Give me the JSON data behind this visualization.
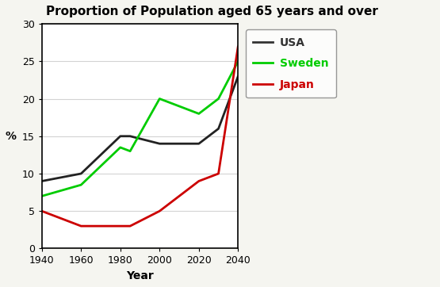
{
  "title": "Proportion of Population aged 65 years and over",
  "xlabel": "Year",
  "ylabel": "%",
  "ylim": [
    0,
    30
  ],
  "xlim": [
    1940,
    2040
  ],
  "xticks": [
    1940,
    1960,
    1980,
    2000,
    2020,
    2040
  ],
  "yticks": [
    0,
    5,
    10,
    15,
    20,
    25,
    30
  ],
  "USA": {
    "x": [
      1940,
      1960,
      1980,
      1985,
      2000,
      2020,
      2030,
      2040
    ],
    "y": [
      9,
      10,
      15,
      15,
      14,
      14,
      16,
      23
    ],
    "color": "#222222",
    "label": "USA",
    "linewidth": 2.0
  },
  "Sweden": {
    "x": [
      1940,
      1960,
      1980,
      1985,
      2000,
      2020,
      2030,
      2040
    ],
    "y": [
      7,
      8.5,
      13.5,
      13,
      20,
      18,
      20,
      25
    ],
    "color": "#00cc00",
    "label": "Sweden",
    "linewidth": 2.0
  },
  "Japan": {
    "x": [
      1940,
      1960,
      1980,
      1985,
      2000,
      2020,
      2030,
      2040
    ],
    "y": [
      5,
      3,
      3,
      3,
      5,
      9,
      10,
      27
    ],
    "color": "#cc0000",
    "label": "Japan",
    "linewidth": 2.0
  },
  "plot_bg": "#ffffff",
  "outer_bg": "#f5f5f0",
  "legend_colors": [
    "#333333",
    "#00cc00",
    "#cc0000"
  ],
  "legend_labels": [
    "USA",
    "Sweden",
    "Japan"
  ],
  "title_fontsize": 11,
  "axis_fontsize": 10,
  "tick_fontsize": 9,
  "legend_fontsize": 10
}
